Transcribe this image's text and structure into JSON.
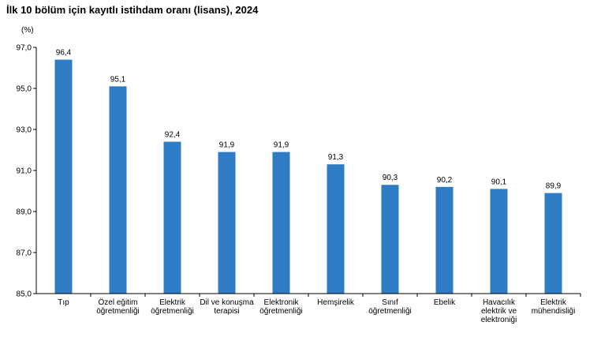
{
  "chart_data": {
    "type": "bar",
    "title": "İlk 10 bölüm için kayıtlı istihdam oranı (lisans), 2024",
    "ylabel": "(%)",
    "xlabel": "",
    "ylim": [
      85.0,
      97.0
    ],
    "yticks": [
      "85,0",
      "87,0",
      "89,0",
      "91,0",
      "93,0",
      "95,0",
      "97,0"
    ],
    "grid": false,
    "legend": "none",
    "bar_color": "#2E7DC4",
    "categories": [
      [
        "Tıp"
      ],
      [
        "Özel eğitim",
        "öğretmenliği"
      ],
      [
        "Elektrik",
        "öğretmenliği"
      ],
      [
        "Dil ve konuşma",
        "terapisi"
      ],
      [
        "Elektronik",
        "öğretmenliği"
      ],
      [
        "Hemşirelik"
      ],
      [
        "Sınıf",
        "öğretmenliği"
      ],
      [
        "Ebelik"
      ],
      [
        "Havacılık",
        "elektrik ve",
        "elektroniği"
      ],
      [
        "Elektrik",
        "mühendisliği"
      ]
    ],
    "values": [
      96.4,
      95.1,
      92.4,
      91.9,
      91.9,
      91.3,
      90.3,
      90.2,
      90.1,
      89.9
    ],
    "value_labels": [
      "96,4",
      "95,1",
      "92,4",
      "91,9",
      "91,9",
      "91,3",
      "90,3",
      "90,2",
      "90,1",
      "89,9"
    ]
  }
}
